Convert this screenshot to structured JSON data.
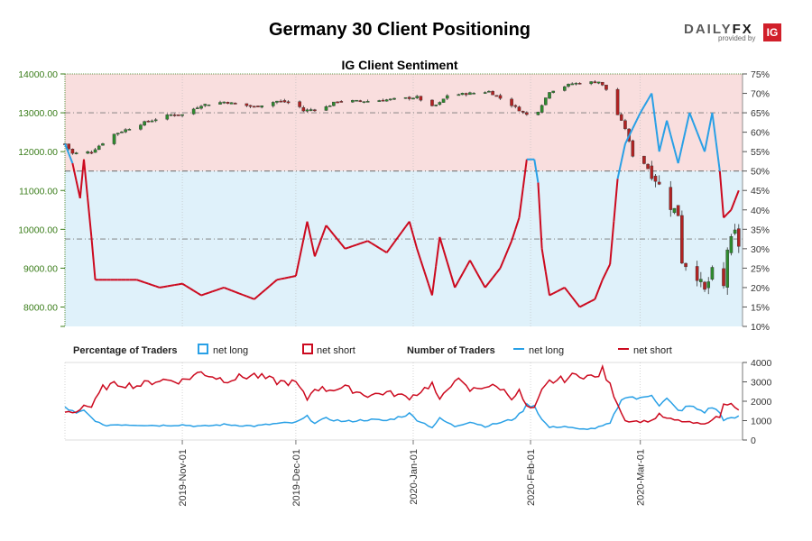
{
  "title": "Germany 30 Client Positioning",
  "subtitle": "IG Client Sentiment",
  "logo": {
    "word_part1": "DAILY",
    "word_part2": "FX",
    "provided_by": "provided by",
    "badge": "IG"
  },
  "legend": {
    "pct_header": "Percentage of Traders",
    "num_header": "Number of Traders",
    "net_long": "net long",
    "net_short": "net short"
  },
  "colors": {
    "net_long": "#29a0e6",
    "net_short": "#cc0a1f",
    "bull_candle": "#2e8b2e",
    "bear_candle": "#b22222",
    "short_zone": "#f9dede",
    "long_zone": "#dff1fa",
    "left_axis": "#3a7d1a"
  },
  "chart_data": [
    {
      "type": "candlestick",
      "name": "Germany 30 price",
      "y_left_ticks": [
        "14000.00",
        "13000.00",
        "12000.00",
        "11000.00",
        "10000.00",
        "9000.00",
        "8000.00"
      ],
      "ylim_left": [
        7500,
        14050
      ],
      "y_right_ticks": [
        "75%",
        "70%",
        "65%",
        "60%",
        "55%",
        "50%",
        "45%",
        "40%",
        "35%",
        "30%",
        "25%",
        "20%",
        "15%",
        "10%"
      ],
      "ylim_right": [
        10,
        75
      ],
      "x_range": [
        "2019-10-01",
        "2020-03-28"
      ],
      "x_ticks": [
        "2019-Nov-01",
        "2019-Dec-01",
        "2020-Jan-01",
        "2020-Feb-01",
        "2020-Mar-01"
      ],
      "reference_lines_pct": [
        65,
        50,
        32.5
      ],
      "anchor_points_close": [
        [
          "2019-10-01",
          12200
        ],
        [
          "2019-10-03",
          11950
        ],
        [
          "2019-10-08",
          12000
        ],
        [
          "2019-10-14",
          12450
        ],
        [
          "2019-10-22",
          12750
        ],
        [
          "2019-10-29",
          12950
        ],
        [
          "2019-11-01",
          12950
        ],
        [
          "2019-11-06",
          13200
        ],
        [
          "2019-11-12",
          13280
        ],
        [
          "2019-11-20",
          13150
        ],
        [
          "2019-11-26",
          13300
        ],
        [
          "2019-12-01",
          13250
        ],
        [
          "2019-12-03",
          13050
        ],
        [
          "2019-12-09",
          13150
        ],
        [
          "2019-12-12",
          13300
        ],
        [
          "2019-12-20",
          13300
        ],
        [
          "2019-12-27",
          13350
        ],
        [
          "2020-01-02",
          13400
        ],
        [
          "2020-01-06",
          13150
        ],
        [
          "2020-01-08",
          13250
        ],
        [
          "2020-01-10",
          13450
        ],
        [
          "2020-01-16",
          13500
        ],
        [
          "2020-01-21",
          13550
        ],
        [
          "2020-01-27",
          13200
        ],
        [
          "2020-01-31",
          12950
        ],
        [
          "2020-02-03",
          13050
        ],
        [
          "2020-02-06",
          13550
        ],
        [
          "2020-02-12",
          13750
        ],
        [
          "2020-02-19",
          13800
        ],
        [
          "2020-02-21",
          13600
        ],
        [
          "2020-02-24",
          12950
        ],
        [
          "2020-02-26",
          12600
        ],
        [
          "2020-02-28",
          11900
        ],
        [
          "2020-03-02",
          11700
        ],
        [
          "2020-03-05",
          11300
        ],
        [
          "2020-03-09",
          10600
        ],
        [
          "2020-03-11",
          10400
        ],
        [
          "2020-03-12",
          9200
        ],
        [
          "2020-03-16",
          8800
        ],
        [
          "2020-03-18",
          8400
        ],
        [
          "2020-03-20",
          8900
        ],
        [
          "2020-03-23",
          8500
        ],
        [
          "2020-03-24",
          9500
        ],
        [
          "2020-03-26",
          9900
        ],
        [
          "2020-03-27",
          9600
        ]
      ],
      "anchor_points_net_long_pct": [
        [
          "2019-10-01",
          57
        ],
        [
          "2019-10-03",
          52
        ],
        [
          "2019-10-05",
          43
        ],
        [
          "2019-10-06",
          53
        ],
        [
          "2019-10-08",
          33
        ],
        [
          "2019-10-09",
          22
        ],
        [
          "2019-10-14",
          22
        ],
        [
          "2019-10-20",
          22
        ],
        [
          "2019-10-26",
          20
        ],
        [
          "2019-11-01",
          21
        ],
        [
          "2019-11-06",
          18
        ],
        [
          "2019-11-12",
          20
        ],
        [
          "2019-11-20",
          17
        ],
        [
          "2019-11-26",
          22
        ],
        [
          "2019-12-01",
          23
        ],
        [
          "2019-12-04",
          37
        ],
        [
          "2019-12-06",
          28
        ],
        [
          "2019-12-09",
          36
        ],
        [
          "2019-12-14",
          30
        ],
        [
          "2019-12-20",
          32
        ],
        [
          "2019-12-25",
          29
        ],
        [
          "2019-12-31",
          37
        ],
        [
          "2020-01-02",
          30
        ],
        [
          "2020-01-06",
          18
        ],
        [
          "2020-01-08",
          33
        ],
        [
          "2020-01-12",
          20
        ],
        [
          "2020-01-16",
          27
        ],
        [
          "2020-01-20",
          20
        ],
        [
          "2020-01-24",
          25
        ],
        [
          "2020-01-27",
          32
        ],
        [
          "2020-01-29",
          38
        ],
        [
          "2020-01-31",
          53
        ],
        [
          "2020-02-02",
          53
        ],
        [
          "2020-02-03",
          47
        ],
        [
          "2020-02-04",
          30
        ],
        [
          "2020-02-06",
          18
        ],
        [
          "2020-02-10",
          20
        ],
        [
          "2020-02-14",
          15
        ],
        [
          "2020-02-18",
          17
        ],
        [
          "2020-02-20",
          22
        ],
        [
          "2020-02-22",
          26
        ],
        [
          "2020-02-24",
          48
        ],
        [
          "2020-02-26",
          57
        ],
        [
          "2020-03-01",
          65
        ],
        [
          "2020-03-04",
          70
        ],
        [
          "2020-03-06",
          55
        ],
        [
          "2020-03-08",
          63
        ],
        [
          "2020-03-11",
          52
        ],
        [
          "2020-03-14",
          65
        ],
        [
          "2020-03-18",
          55
        ],
        [
          "2020-03-20",
          65
        ],
        [
          "2020-03-22",
          50
        ],
        [
          "2020-03-23",
          38
        ],
        [
          "2020-03-25",
          40
        ],
        [
          "2020-03-27",
          45
        ]
      ]
    },
    {
      "type": "line",
      "name": "Number of Traders",
      "y_ticks": [
        "4000",
        "3000",
        "2000",
        "1000",
        "0"
      ],
      "ylim": [
        0,
        4000
      ],
      "series": [
        {
          "name": "net long",
          "anchor_points": [
            [
              "2019-10-01",
              1700
            ],
            [
              "2019-10-04",
              1350
            ],
            [
              "2019-10-06",
              1500
            ],
            [
              "2019-10-08",
              1150
            ],
            [
              "2019-10-11",
              750
            ],
            [
              "2019-10-15",
              800
            ],
            [
              "2019-10-20",
              780
            ],
            [
              "2019-10-26",
              750
            ],
            [
              "2019-11-01",
              780
            ],
            [
              "2019-11-06",
              700
            ],
            [
              "2019-11-12",
              800
            ],
            [
              "2019-11-20",
              720
            ],
            [
              "2019-11-26",
              850
            ],
            [
              "2019-12-01",
              900
            ],
            [
              "2019-12-04",
              1200
            ],
            [
              "2019-12-06",
              900
            ],
            [
              "2019-12-09",
              1100
            ],
            [
              "2019-12-14",
              950
            ],
            [
              "2019-12-20",
              1050
            ],
            [
              "2019-12-25",
              1000
            ],
            [
              "2019-12-31",
              1350
            ],
            [
              "2020-01-02",
              1050
            ],
            [
              "2020-01-06",
              650
            ],
            [
              "2020-01-08",
              1100
            ],
            [
              "2020-01-12",
              700
            ],
            [
              "2020-01-16",
              950
            ],
            [
              "2020-01-20",
              700
            ],
            [
              "2020-01-24",
              900
            ],
            [
              "2020-01-27",
              1050
            ],
            [
              "2020-01-29",
              1300
            ],
            [
              "2020-01-31",
              1800
            ],
            [
              "2020-02-02",
              1800
            ],
            [
              "2020-02-04",
              1050
            ],
            [
              "2020-02-06",
              650
            ],
            [
              "2020-02-10",
              700
            ],
            [
              "2020-02-14",
              550
            ],
            [
              "2020-02-18",
              600
            ],
            [
              "2020-02-22",
              850
            ],
            [
              "2020-02-24",
              1700
            ],
            [
              "2020-02-26",
              2300
            ],
            [
              "2020-03-01",
              2100
            ],
            [
              "2020-03-04",
              2400
            ],
            [
              "2020-03-06",
              1800
            ],
            [
              "2020-03-08",
              2100
            ],
            [
              "2020-03-11",
              1500
            ],
            [
              "2020-03-14",
              1750
            ],
            [
              "2020-03-18",
              1450
            ],
            [
              "2020-03-20",
              1700
            ],
            [
              "2020-03-22",
              1400
            ],
            [
              "2020-03-23",
              1050
            ],
            [
              "2020-03-25",
              1100
            ],
            [
              "2020-03-27",
              1200
            ]
          ]
        },
        {
          "name": "net short",
          "anchor_points": [
            [
              "2019-10-01",
              1450
            ],
            [
              "2019-10-04",
              1450
            ],
            [
              "2019-10-06",
              1800
            ],
            [
              "2019-10-08",
              1700
            ],
            [
              "2019-10-11",
              2700
            ],
            [
              "2019-10-15",
              2900
            ],
            [
              "2019-10-20",
              2800
            ],
            [
              "2019-10-26",
              3100
            ],
            [
              "2019-11-01",
              3050
            ],
            [
              "2019-11-06",
              3500
            ],
            [
              "2019-11-12",
              3100
            ],
            [
              "2019-11-20",
              3350
            ],
            [
              "2019-11-26",
              3000
            ],
            [
              "2019-12-01",
              2950
            ],
            [
              "2019-12-04",
              2100
            ],
            [
              "2019-12-06",
              2700
            ],
            [
              "2019-12-09",
              2600
            ],
            [
              "2019-12-14",
              2700
            ],
            [
              "2019-12-20",
              2300
            ],
            [
              "2019-12-25",
              2450
            ],
            [
              "2019-12-31",
              2200
            ],
            [
              "2020-01-02",
              2400
            ],
            [
              "2020-01-06",
              2900
            ],
            [
              "2020-01-08",
              2000
            ],
            [
              "2020-01-12",
              3200
            ],
            [
              "2020-01-16",
              2550
            ],
            [
              "2020-01-20",
              2800
            ],
            [
              "2020-01-24",
              2700
            ],
            [
              "2020-01-27",
              2200
            ],
            [
              "2020-01-29",
              2500
            ],
            [
              "2020-01-31",
              1700
            ],
            [
              "2020-02-02",
              1600
            ],
            [
              "2020-02-04",
              2500
            ],
            [
              "2020-02-06",
              3000
            ],
            [
              "2020-02-10",
              3150
            ],
            [
              "2020-02-14",
              3400
            ],
            [
              "2020-02-18",
              3200
            ],
            [
              "2020-02-20",
              3600
            ],
            [
              "2020-02-22",
              2800
            ],
            [
              "2020-02-24",
              1900
            ],
            [
              "2020-02-26",
              1000
            ],
            [
              "2020-03-01",
              950
            ],
            [
              "2020-03-04",
              1000
            ],
            [
              "2020-03-06",
              1300
            ],
            [
              "2020-03-08",
              1100
            ],
            [
              "2020-03-11",
              1000
            ],
            [
              "2020-03-14",
              900
            ],
            [
              "2020-03-18",
              800
            ],
            [
              "2020-03-20",
              1100
            ],
            [
              "2020-03-22",
              1200
            ],
            [
              "2020-03-23",
              1800
            ],
            [
              "2020-03-25",
              2000
            ],
            [
              "2020-03-27",
              1500
            ]
          ]
        }
      ]
    }
  ]
}
